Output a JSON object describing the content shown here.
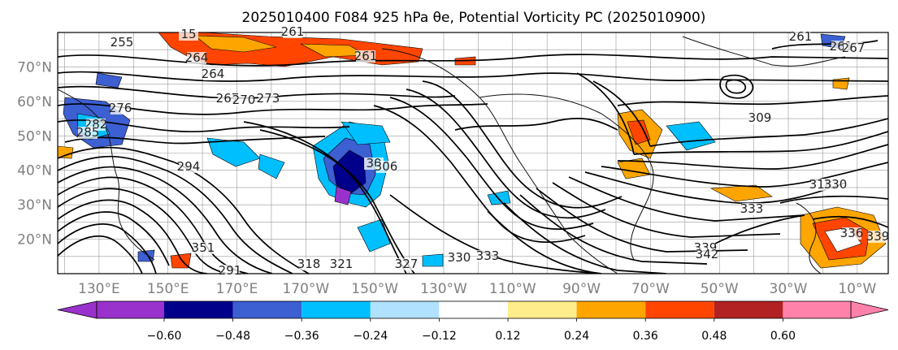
{
  "title": "2025010400 F084 925 hPa θe, Potential Vorticity PC (2025010900)",
  "lat_labels": [
    "70°N",
    "60°N",
    "50°N",
    "40°N",
    "30°N",
    "20°N"
  ],
  "lat_values": [
    70,
    60,
    50,
    40,
    30,
    20
  ],
  "lon_labels": [
    "130°E",
    "150°E",
    "170°E",
    "170°W",
    "150°W",
    "130°W",
    "110°W",
    "90°W",
    "70°W",
    "50°W",
    "30°W",
    "10°W"
  ],
  "lon_values": [
    130,
    150,
    170,
    190,
    210,
    230,
    250,
    270,
    290,
    310,
    330,
    350
  ],
  "extent": {
    "lon_min": 118,
    "lon_max": 359,
    "lat_min": 10,
    "lat_max": 80
  },
  "colorbar": {
    "colors": [
      "#9932cc",
      "#00008b",
      "#3c5fd2",
      "#00bfff",
      "#b0e2ff",
      "#ffffff",
      "#ffec8b",
      "#ffa500",
      "#ff4500",
      "#b22222",
      "#ff82ab"
    ],
    "tick_labels": [
      "−0.60",
      "−0.48",
      "−0.36",
      "−0.24",
      "−0.12",
      "0.12",
      "0.24",
      "0.36",
      "0.48",
      "0.60"
    ],
    "ticks": [
      -0.6,
      -0.48,
      -0.36,
      -0.24,
      -0.12,
      0.12,
      0.24,
      0.36,
      0.48,
      0.6
    ],
    "extend": "both"
  },
  "contour_labels": [
    "255",
    "15",
    "261",
    "264",
    "261",
    "261",
    "264",
    "267",
    "270",
    "273",
    "282",
    "276",
    "285",
    "294",
    "30",
    "306",
    "309",
    "318",
    "330",
    "333",
    "336",
    "339",
    "339",
    "342",
    "351",
    "291",
    "318",
    "321",
    "327",
    "330",
    "333",
    "261",
    "267"
  ]
}
